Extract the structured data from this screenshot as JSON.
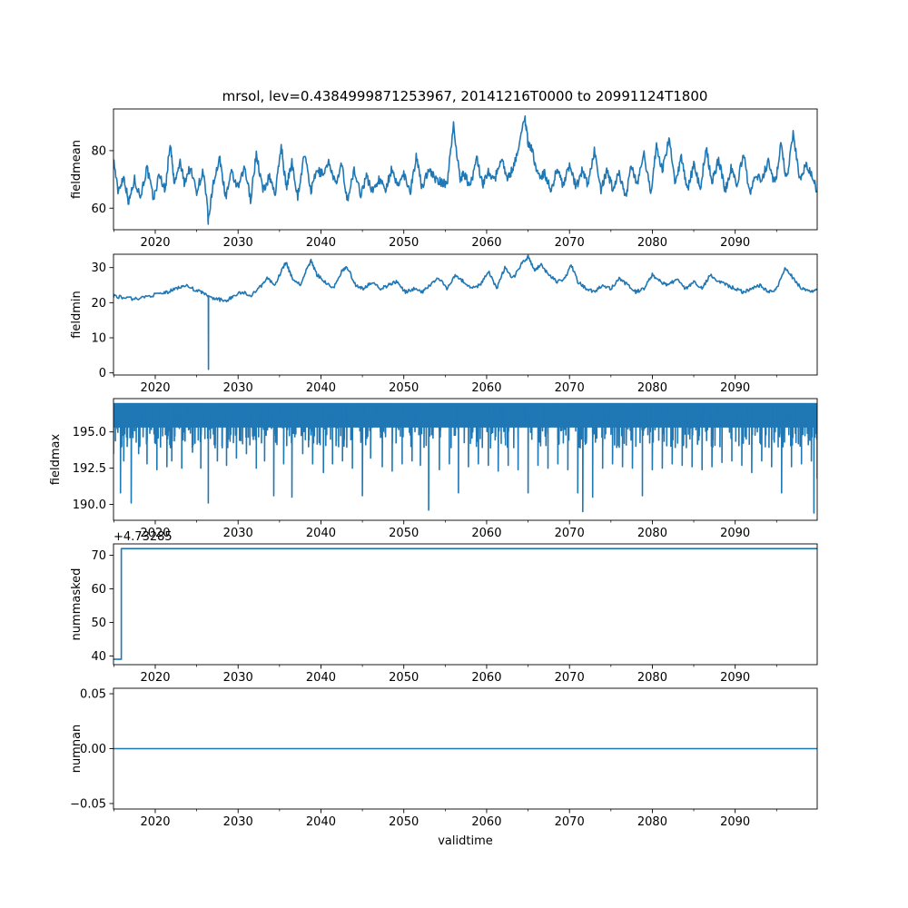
{
  "title": "mrsol, lev=0.4384999871253967, 20141216T0000 to 20991124T1800",
  "line_color": "#1f77b4",
  "chart_data": [
    {
      "type": "line",
      "ylabel": "fieldmean",
      "xlabel": "",
      "xlim": [
        2014.96,
        2099.9
      ],
      "ylim": [
        52.5,
        94.5
      ],
      "yticks": [
        60,
        80
      ],
      "ytick_labels": [
        "60",
        "80"
      ],
      "xticks": [
        2020,
        2030,
        2040,
        2050,
        2060,
        2070,
        2080,
        2090
      ],
      "xtick_labels": [
        "2020",
        "2030",
        "2040",
        "2050",
        "2060",
        "2070",
        "2080",
        "2090"
      ],
      "offset_text": "",
      "grid": false,
      "series": [
        {
          "x": [
            2014.96,
            2015.5,
            2016.2,
            2016.8,
            2017.5,
            2018.2,
            2019.0,
            2019.8,
            2020.5,
            2021.2,
            2021.8,
            2022.3,
            2023.0,
            2023.5,
            2024.2,
            2025.0,
            2025.8,
            2026.3,
            2026.4,
            2027.0,
            2027.8,
            2028.5,
            2029.2,
            2030.0,
            2030.8,
            2031.5,
            2032.2,
            2033.0,
            2033.8,
            2034.5,
            2035.2,
            2035.8,
            2036.5,
            2037.2,
            2038.0,
            2038.8,
            2039.5,
            2040.2,
            2041.0,
            2041.8,
            2042.5,
            2043.2,
            2044.0,
            2044.8,
            2045.5,
            2046.2,
            2047.0,
            2047.8,
            2048.5,
            2049.2,
            2050.0,
            2050.8,
            2051.5,
            2052.2,
            2053.0,
            2053.8,
            2054.5,
            2055.2,
            2056.0,
            2056.8,
            2057.3,
            2058.0,
            2058.8,
            2059.5,
            2060.2,
            2061.0,
            2061.8,
            2062.5,
            2063.2,
            2064.0,
            2064.6,
            2065.0,
            2065.5,
            2066.2,
            2067.0,
            2067.8,
            2068.5,
            2069.2,
            2070.0,
            2070.8,
            2071.5,
            2072.2,
            2073.0,
            2073.8,
            2074.5,
            2075.2,
            2076.0,
            2076.8,
            2077.5,
            2078.2,
            2079.0,
            2079.8,
            2080.5,
            2081.2,
            2082.0,
            2082.8,
            2083.5,
            2084.2,
            2085.0,
            2085.8,
            2086.5,
            2087.2,
            2088.0,
            2088.8,
            2089.5,
            2090.2,
            2091.0,
            2091.8,
            2092.5,
            2093.2,
            2094.0,
            2094.8,
            2095.5,
            2096.2,
            2097.0,
            2097.8,
            2098.5,
            2099.2,
            2099.9
          ],
          "y": [
            77,
            66,
            71,
            62,
            70,
            64,
            74,
            63,
            72,
            66,
            83,
            68,
            76,
            69,
            74,
            66,
            73,
            60,
            55,
            69,
            77,
            64,
            72,
            67,
            74,
            63,
            79,
            66,
            71,
            65,
            82,
            67,
            76,
            64,
            79,
            66,
            73,
            72,
            76,
            68,
            75,
            63,
            73,
            65,
            71,
            66,
            70,
            67,
            73,
            68,
            72,
            66,
            78,
            67,
            74,
            70,
            69,
            68,
            89,
            70,
            72,
            67,
            78,
            68,
            73,
            70,
            78,
            70,
            74,
            83,
            92,
            83,
            80,
            71,
            72,
            66,
            74,
            68,
            75,
            67,
            73,
            68,
            80,
            66,
            73,
            67,
            72,
            64,
            75,
            68,
            79,
            65,
            82,
            73,
            84,
            68,
            78,
            66,
            75,
            67,
            81,
            69,
            77,
            66,
            74,
            68,
            79,
            64,
            72,
            70,
            76,
            68,
            82,
            70,
            86,
            70,
            75,
            72,
            66
          ]
        }
      ]
    },
    {
      "type": "line",
      "ylabel": "fieldmin",
      "xlabel": "",
      "xlim": [
        2014.96,
        2099.9
      ],
      "ylim": [
        -0.6,
        33.8
      ],
      "yticks": [
        0,
        10,
        20,
        30
      ],
      "ytick_labels": [
        "0",
        "10",
        "20",
        "30"
      ],
      "xticks": [
        2020,
        2030,
        2040,
        2050,
        2060,
        2070,
        2080,
        2090
      ],
      "xtick_labels": [
        "2020",
        "2030",
        "2040",
        "2050",
        "2060",
        "2070",
        "2080",
        "2090"
      ],
      "offset_text": "",
      "grid": false,
      "series": [
        {
          "x": [
            2014.96,
            2016.0,
            2017.5,
            2019.0,
            2020.5,
            2021.5,
            2022.5,
            2023.5,
            2024.5,
            2025.5,
            2026.4,
            2026.42,
            2026.44,
            2027.5,
            2028.5,
            2029.5,
            2030.5,
            2031.5,
            2032.5,
            2033.5,
            2034.5,
            2035.2,
            2035.8,
            2036.5,
            2037.5,
            2038.2,
            2038.8,
            2039.5,
            2040.5,
            2041.5,
            2042.5,
            2043.2,
            2044.2,
            2045.2,
            2046.2,
            2047.2,
            2048.2,
            2049.2,
            2050.2,
            2051.2,
            2052.2,
            2053.2,
            2054.2,
            2055.2,
            2056.2,
            2057.2,
            2058.2,
            2059.2,
            2060.2,
            2061.2,
            2062.2,
            2063.2,
            2064.2,
            2065.0,
            2065.8,
            2066.5,
            2067.5,
            2068.5,
            2069.5,
            2070.2,
            2071.0,
            2072.0,
            2073.0,
            2074.0,
            2075.0,
            2076.0,
            2077.0,
            2078.0,
            2079.0,
            2080.0,
            2081.0,
            2082.0,
            2083.0,
            2084.0,
            2085.0,
            2086.0,
            2087.0,
            2088.0,
            2089.0,
            2090.0,
            2091.0,
            2092.0,
            2093.0,
            2094.0,
            2095.0,
            2096.0,
            2097.0,
            2098.0,
            2099.0,
            2099.9
          ],
          "y": [
            22,
            21.5,
            21,
            21.8,
            22.5,
            23,
            24,
            25,
            24,
            23,
            22,
            1,
            21.5,
            21,
            20.5,
            22,
            23,
            22,
            24,
            27,
            25,
            29,
            31.5,
            27,
            25,
            29,
            32,
            28,
            26,
            24,
            29,
            30,
            25,
            24,
            26,
            24,
            25,
            26,
            23,
            24,
            23,
            25,
            27,
            24,
            28,
            26,
            24,
            25,
            29,
            24,
            30,
            27,
            31,
            33,
            29,
            31,
            28,
            26,
            27,
            31,
            26,
            24,
            23,
            25,
            24,
            27,
            25,
            23,
            24,
            28,
            26,
            25,
            27,
            24,
            26,
            24,
            28,
            26,
            25,
            24,
            23,
            24,
            25,
            23,
            24,
            30,
            27,
            24,
            23,
            24
          ]
        }
      ]
    },
    {
      "type": "line",
      "ylabel": "fieldmax",
      "xlabel": "",
      "xlim": [
        2014.96,
        2099.9
      ],
      "ylim": [
        188.9,
        197.3
      ],
      "yticks": [
        190.0,
        192.5,
        195.0
      ],
      "ytick_labels": [
        "190.0",
        "192.5",
        "195.0"
      ],
      "xticks": [
        2020,
        2030,
        2040,
        2050,
        2060,
        2070,
        2080,
        2090
      ],
      "xtick_labels": [
        "2020",
        "2030",
        "2040",
        "2050",
        "2060",
        "2070",
        "2080",
        "2090"
      ],
      "offset_text": "",
      "grid": false,
      "series": [
        {
          "x": [
            2014.96,
            2015.8,
            2016.2,
            2017.1,
            2018.0,
            2019.0,
            2020.2,
            2021.4,
            2022.0,
            2023.2,
            2024.5,
            2025.5,
            2026.4,
            2027.5,
            2028.6,
            2029.8,
            2031.0,
            2032.2,
            2033.2,
            2034.3,
            2035.5,
            2036.5,
            2037.8,
            2039.0,
            2040.3,
            2041.4,
            2042.6,
            2043.8,
            2045.0,
            2046.0,
            2047.4,
            2048.6,
            2049.8,
            2051.0,
            2052.0,
            2053.0,
            2054.3,
            2055.5,
            2056.6,
            2057.8,
            2059.0,
            2060.2,
            2061.4,
            2062.6,
            2063.8,
            2065.0,
            2066.2,
            2067.4,
            2068.6,
            2069.8,
            2071.0,
            2071.6,
            2072.8,
            2074.0,
            2075.2,
            2076.4,
            2077.6,
            2078.8,
            2080.0,
            2081.2,
            2082.4,
            2083.6,
            2084.8,
            2086.0,
            2087.2,
            2088.4,
            2089.6,
            2090.8,
            2092.0,
            2093.2,
            2094.4,
            2095.6,
            2096.8,
            2098.0,
            2099.2,
            2099.5,
            2099.9
          ],
          "y": [
            193.5,
            190.8,
            193.0,
            190.1,
            193.5,
            192.8,
            192.4,
            192.6,
            193.0,
            192.5,
            193.6,
            192.5,
            190.1,
            193.0,
            192.7,
            193.2,
            193.5,
            192.5,
            193.0,
            190.6,
            192.8,
            190.5,
            193.5,
            192.8,
            192.2,
            192.8,
            193.0,
            192.5,
            190.6,
            193.2,
            192.6,
            192.3,
            192.8,
            193.0,
            192.7,
            189.6,
            192.4,
            192.8,
            190.8,
            192.6,
            192.8,
            192.7,
            192.3,
            192.7,
            192.4,
            190.8,
            192.7,
            192.5,
            192.8,
            192.4,
            190.8,
            189.5,
            190.5,
            192.5,
            192.8,
            192.6,
            192.5,
            190.6,
            192.4,
            192.5,
            192.8,
            192.7,
            192.6,
            192.4,
            192.6,
            192.9,
            193.0,
            192.7,
            192.2,
            193.0,
            192.6,
            190.8,
            192.6,
            192.8,
            193.0,
            189.4,
            191.8
          ]
        }
      ]
    },
    {
      "type": "line",
      "ylabel": "nummasked",
      "xlabel": "",
      "xlim": [
        2014.96,
        2099.9
      ],
      "ylim": [
        37.4,
        73.4
      ],
      "yticks": [
        40,
        50,
        60,
        70
      ],
      "ytick_labels": [
        "40",
        "50",
        "60",
        "70"
      ],
      "xticks": [
        2020,
        2030,
        2040,
        2050,
        2060,
        2070,
        2080,
        2090
      ],
      "xtick_labels": [
        "2020",
        "2030",
        "2040",
        "2050",
        "2060",
        "2070",
        "2080",
        "2090"
      ],
      "offset_text": "+4.73285",
      "overlap_text": "2020",
      "grid": false,
      "series": [
        {
          "x": [
            2014.96,
            2015.9,
            2015.9,
            2099.9
          ],
          "y": [
            39,
            39,
            72,
            72
          ]
        }
      ]
    },
    {
      "type": "line",
      "ylabel": "numnan",
      "xlabel": "validtime",
      "xlim": [
        2014.96,
        2099.9
      ],
      "ylim": [
        -0.055,
        0.055
      ],
      "yticks": [
        -0.05,
        0.0,
        0.05
      ],
      "ytick_labels": [
        "−0.05",
        "0.00",
        "0.05"
      ],
      "xticks": [
        2020,
        2030,
        2040,
        2050,
        2060,
        2070,
        2080,
        2090
      ],
      "xtick_labels": [
        "2020",
        "2030",
        "2040",
        "2050",
        "2060",
        "2070",
        "2080",
        "2090"
      ],
      "offset_text": "",
      "grid": false,
      "series": [
        {
          "x": [
            2014.96,
            2099.9
          ],
          "y": [
            0,
            0
          ]
        }
      ]
    }
  ]
}
